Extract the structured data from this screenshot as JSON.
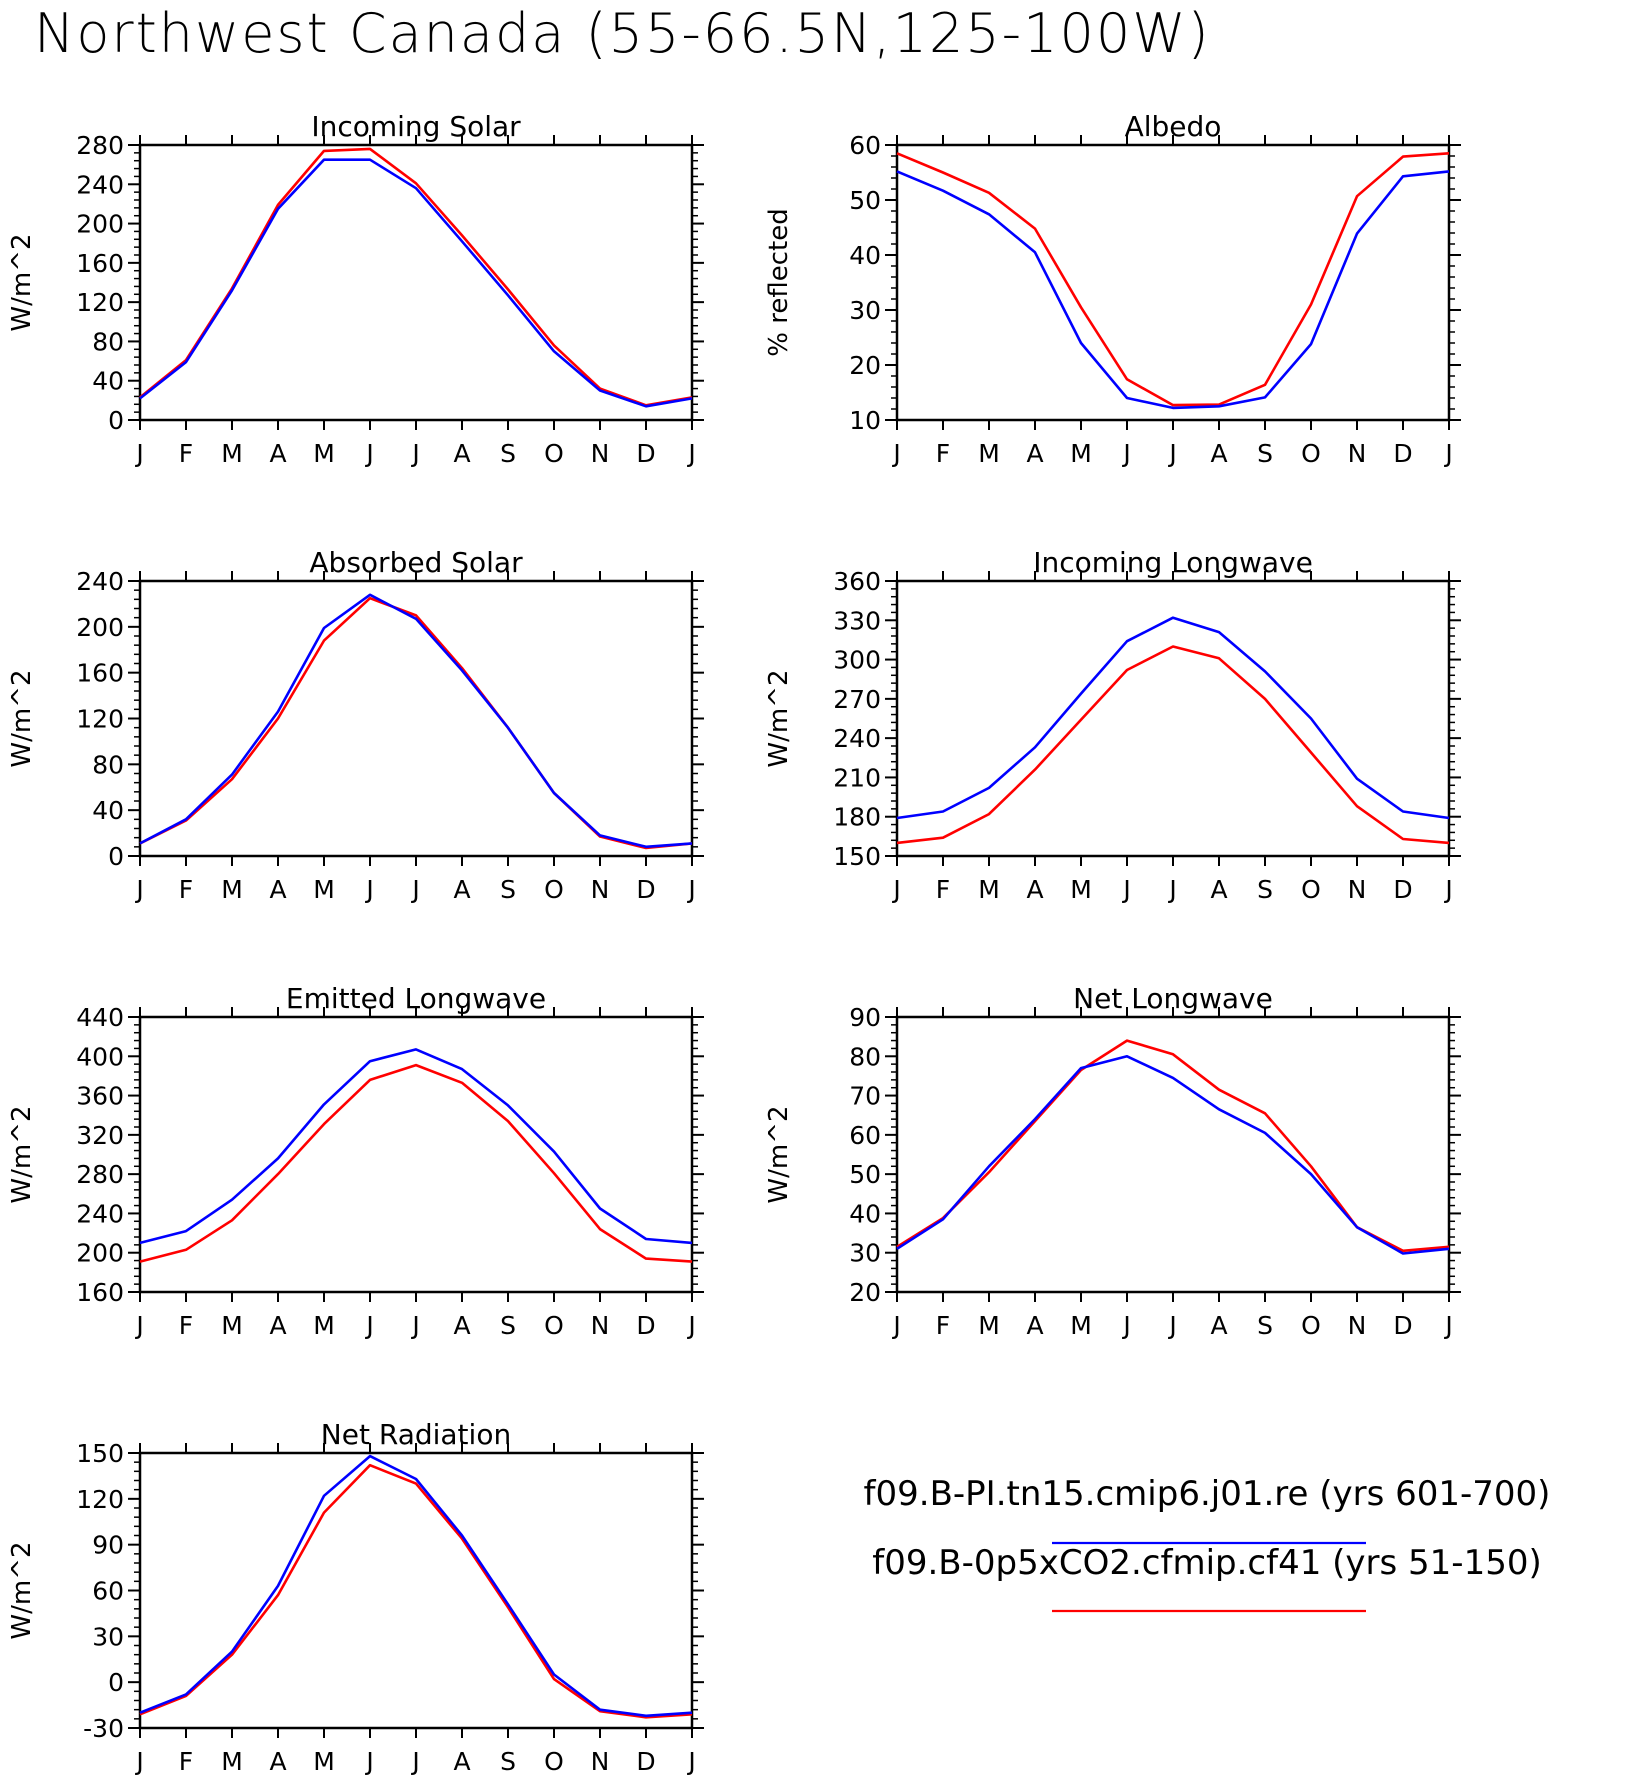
{
  "title": "Northwest Canada (55-66.5N,125-100W)",
  "legend": [
    {
      "label": "f09.B-PI.tn15.cmip6.j01.re (yrs 601-700)",
      "color": "#0000ff"
    },
    {
      "label": "f09.B-0p5xCO2.cfmip.cf41 (yrs 51-150)",
      "color": "#ff0000"
    }
  ],
  "chart_data": [
    {
      "type": "line",
      "title": "Incoming Solar",
      "ylabel": "W/m^2",
      "categories": [
        "J",
        "F",
        "M",
        "A",
        "M",
        "J",
        "J",
        "A",
        "S",
        "O",
        "N",
        "D",
        "J"
      ],
      "ylim": [
        0,
        280
      ],
      "yticks": [
        0,
        40,
        80,
        120,
        160,
        200,
        240,
        280
      ],
      "series": [
        {
          "name": "f09.B-PI.tn15.cmip6.j01.re (yrs 601-700)",
          "color": "#0000ff",
          "values": [
            22,
            59,
            132,
            215,
            265,
            265,
            236,
            182,
            127,
            70,
            30,
            14,
            22
          ]
        },
        {
          "name": "f09.B-0p5xCO2.cfmip.cf41 (yrs 51-150)",
          "color": "#ff0000",
          "values": [
            23,
            61,
            134,
            219,
            274,
            276,
            241,
            188,
            133,
            76,
            32,
            15,
            23
          ]
        }
      ]
    },
    {
      "type": "line",
      "title": "Albedo",
      "ylabel": "% reflected",
      "categories": [
        "J",
        "F",
        "M",
        "A",
        "M",
        "J",
        "J",
        "A",
        "S",
        "O",
        "N",
        "D",
        "J"
      ],
      "ylim": [
        10,
        60
      ],
      "yticks": [
        10,
        20,
        30,
        40,
        50,
        60
      ],
      "series": [
        {
          "name": "f09.B-PI.tn15.cmip6.j01.re (yrs 601-700)",
          "color": "#0000ff",
          "values": [
            55.2,
            51.7,
            47.4,
            40.5,
            24.0,
            14.0,
            12.2,
            12.5,
            14.1,
            23.8,
            43.9,
            54.3,
            55.2
          ]
        },
        {
          "name": "f09.B-0p5xCO2.cfmip.cf41 (yrs 51-150)",
          "color": "#ff0000",
          "values": [
            58.5,
            55.0,
            51.3,
            44.8,
            30.5,
            17.4,
            12.7,
            12.8,
            16.4,
            31.0,
            50.7,
            57.9,
            58.5
          ]
        }
      ]
    },
    {
      "type": "line",
      "title": "Absorbed Solar",
      "ylabel": "W/m^2",
      "categories": [
        "J",
        "F",
        "M",
        "A",
        "M",
        "J",
        "J",
        "A",
        "S",
        "O",
        "N",
        "D",
        "J"
      ],
      "ylim": [
        0,
        240
      ],
      "yticks": [
        0,
        40,
        80,
        120,
        160,
        200,
        240
      ],
      "series": [
        {
          "name": "f09.B-PI.tn15.cmip6.j01.re (yrs 601-700)",
          "color": "#0000ff",
          "values": [
            11,
            32,
            71,
            126,
            199,
            228,
            207,
            162,
            112,
            55,
            18,
            8,
            11
          ]
        },
        {
          "name": "f09.B-0p5xCO2.cfmip.cf41 (yrs 51-150)",
          "color": "#ff0000",
          "values": [
            11,
            31,
            67,
            120,
            188,
            225,
            210,
            164,
            112,
            55,
            17,
            7,
            11
          ]
        }
      ]
    },
    {
      "type": "line",
      "title": "Incoming Longwave",
      "ylabel": "W/m^2",
      "categories": [
        "J",
        "F",
        "M",
        "A",
        "M",
        "J",
        "J",
        "A",
        "S",
        "O",
        "N",
        "D",
        "J"
      ],
      "ylim": [
        150,
        360
      ],
      "yticks": [
        150,
        180,
        210,
        240,
        270,
        300,
        330,
        360
      ],
      "series": [
        {
          "name": "f09.B-PI.tn15.cmip6.j01.re (yrs 601-700)",
          "color": "#0000ff",
          "values": [
            179,
            184,
            202,
            233,
            274,
            314,
            332,
            321,
            291,
            255,
            209,
            184,
            179
          ]
        },
        {
          "name": "f09.B-0p5xCO2.cfmip.cf41 (yrs 51-150)",
          "color": "#ff0000",
          "values": [
            160,
            164,
            182,
            216,
            254,
            292,
            310,
            301,
            270,
            229,
            188,
            163,
            160
          ]
        }
      ]
    },
    {
      "type": "line",
      "title": "Emitted Longwave",
      "ylabel": "W/m^2",
      "categories": [
        "J",
        "F",
        "M",
        "A",
        "M",
        "J",
        "J",
        "A",
        "S",
        "O",
        "N",
        "D",
        "J"
      ],
      "ylim": [
        160,
        440
      ],
      "yticks": [
        160,
        200,
        240,
        280,
        320,
        360,
        400,
        440
      ],
      "series": [
        {
          "name": "f09.B-PI.tn15.cmip6.j01.re (yrs 601-700)",
          "color": "#0000ff",
          "values": [
            210,
            222,
            254,
            296,
            351,
            395,
            407,
            387,
            350,
            303,
            245,
            214,
            210
          ]
        },
        {
          "name": "f09.B-0p5xCO2.cfmip.cf41 (yrs 51-150)",
          "color": "#ff0000",
          "values": [
            191,
            203,
            233,
            280,
            331,
            376,
            391,
            373,
            334,
            281,
            224,
            194,
            191
          ]
        }
      ]
    },
    {
      "type": "line",
      "title": "Net Longwave",
      "ylabel": "W/m^2",
      "categories": [
        "J",
        "F",
        "M",
        "A",
        "M",
        "J",
        "J",
        "A",
        "S",
        "O",
        "N",
        "D",
        "J"
      ],
      "ylim": [
        20,
        90
      ],
      "yticks": [
        20,
        30,
        40,
        50,
        60,
        70,
        80,
        90
      ],
      "series": [
        {
          "name": "f09.B-PI.tn15.cmip6.j01.re (yrs 601-700)",
          "color": "#0000ff",
          "values": [
            31,
            38.5,
            52,
            64,
            77,
            80,
            74.5,
            66.5,
            60.5,
            50,
            36.5,
            29.8,
            31
          ]
        },
        {
          "name": "f09.B-0p5xCO2.cfmip.cf41 (yrs 51-150)",
          "color": "#ff0000",
          "values": [
            31.5,
            38.8,
            50.5,
            63.5,
            76.5,
            84,
            80.5,
            71.5,
            65.5,
            52,
            36.5,
            30.5,
            31.5
          ]
        }
      ]
    },
    {
      "type": "line",
      "title": "Net Radiation",
      "ylabel": "W/m^2",
      "categories": [
        "J",
        "F",
        "M",
        "A",
        "M",
        "J",
        "J",
        "A",
        "S",
        "O",
        "N",
        "D",
        "J"
      ],
      "ylim": [
        -30,
        150
      ],
      "yticks": [
        -30,
        0,
        30,
        60,
        90,
        120,
        150
      ],
      "series": [
        {
          "name": "f09.B-PI.tn15.cmip6.j01.re (yrs 601-700)",
          "color": "#0000ff",
          "values": [
            -20,
            -8,
            20,
            63,
            122,
            148,
            133,
            96,
            51,
            5,
            -18,
            -22,
            -20
          ]
        },
        {
          "name": "f09.B-0p5xCO2.cfmip.cf41 (yrs 51-150)",
          "color": "#ff0000",
          "values": [
            -21,
            -9,
            18,
            57,
            111,
            142,
            130,
            94,
            49,
            2,
            -19,
            -23,
            -21
          ]
        }
      ]
    }
  ]
}
